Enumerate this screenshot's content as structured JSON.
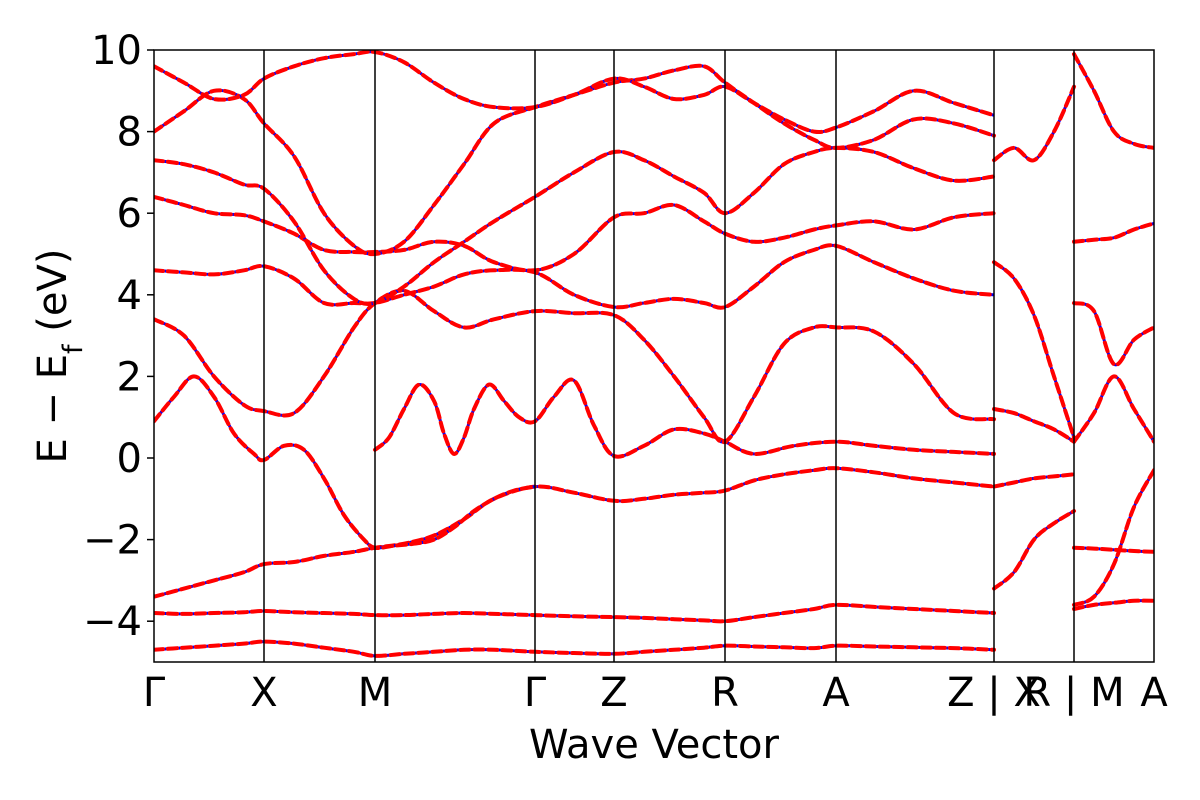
{
  "chart_data": {
    "type": "line",
    "xlabel": "Wave Vector",
    "ylabel_parts": {
      "main": "E − E",
      "sub": "f",
      "unit": " (eV)"
    },
    "ylim": [
      -5,
      10
    ],
    "xlim": [
      0,
      1
    ],
    "yticks": [
      -4,
      -2,
      0,
      2,
      4,
      6,
      8,
      10
    ],
    "ytick_labels": [
      "−4",
      "−2",
      "0",
      "2",
      "4",
      "6",
      "8",
      "10"
    ],
    "high_symmetry_points": [
      {
        "label": "Γ",
        "x": 0.0
      },
      {
        "label": "X",
        "x": 0.11
      },
      {
        "label": "M",
        "x": 0.221
      },
      {
        "label": "Γ",
        "x": 0.381
      },
      {
        "label": "Z",
        "x": 0.46
      },
      {
        "label": "R",
        "x": 0.571
      },
      {
        "label": "A",
        "x": 0.682
      },
      {
        "label": "Z | X",
        "x": 0.84
      },
      {
        "label": "R | M",
        "x": 0.92
      },
      {
        "label": "A",
        "x": 1.0
      }
    ],
    "colors": {
      "band_primary": "#ff0000",
      "band_secondary": "#0000ff",
      "axis": "#000000"
    },
    "series": [
      {
        "x": [
          0.0,
          0.03,
          0.06,
          0.09,
          0.11,
          0.14,
          0.17,
          0.2,
          0.221,
          0.25,
          0.28,
          0.31,
          0.34,
          0.381,
          0.42,
          0.46,
          0.49,
          0.52,
          0.55,
          0.571,
          0.6,
          0.63,
          0.66,
          0.682,
          0.72,
          0.76,
          0.8,
          0.84
        ],
        "y": [
          -4.7,
          -4.65,
          -4.6,
          -4.55,
          -4.5,
          -4.55,
          -4.65,
          -4.75,
          -4.85,
          -4.8,
          -4.75,
          -4.7,
          -4.7,
          -4.75,
          -4.78,
          -4.8,
          -4.75,
          -4.7,
          -4.65,
          -4.6,
          -4.62,
          -4.64,
          -4.66,
          -4.6,
          -4.62,
          -4.64,
          -4.66,
          -4.7
        ]
      },
      {
        "x": [
          0.0,
          0.03,
          0.06,
          0.09,
          0.11,
          0.14,
          0.17,
          0.2,
          0.221,
          0.25,
          0.28,
          0.31,
          0.34,
          0.381,
          0.42,
          0.46,
          0.49,
          0.52,
          0.55,
          0.571,
          0.6,
          0.63,
          0.66,
          0.682,
          0.72,
          0.76,
          0.8,
          0.84
        ],
        "y": [
          -3.8,
          -3.82,
          -3.8,
          -3.78,
          -3.75,
          -3.78,
          -3.8,
          -3.82,
          -3.85,
          -3.85,
          -3.82,
          -3.8,
          -3.82,
          -3.85,
          -3.88,
          -3.9,
          -3.92,
          -3.95,
          -3.98,
          -4.0,
          -3.9,
          -3.8,
          -3.7,
          -3.6,
          -3.65,
          -3.7,
          -3.75,
          -3.8
        ]
      },
      {
        "x": [
          0.0,
          0.03,
          0.06,
          0.09,
          0.11,
          0.14,
          0.17,
          0.2,
          0.221,
          0.25,
          0.28,
          0.31,
          0.34,
          0.381,
          0.42,
          0.46,
          0.49,
          0.52,
          0.55,
          0.571,
          0.6,
          0.63,
          0.66,
          0.682,
          0.72,
          0.76,
          0.8,
          0.84
        ],
        "y": [
          -3.4,
          -3.2,
          -3.0,
          -2.8,
          -2.6,
          -2.55,
          -2.4,
          -2.3,
          -2.2,
          -2.1,
          -1.9,
          -1.5,
          -1.0,
          -0.7,
          -0.85,
          -1.05,
          -1.0,
          -0.9,
          -0.85,
          -0.8,
          -0.55,
          -0.4,
          -0.3,
          -0.25,
          -0.35,
          -0.5,
          -0.6,
          -0.7
        ]
      },
      {
        "x": [
          0.0,
          0.02,
          0.04,
          0.06,
          0.08,
          0.1,
          0.11,
          0.13,
          0.15,
          0.17,
          0.19,
          0.21,
          0.221,
          0.24,
          0.26,
          0.28,
          0.3,
          0.32,
          0.34,
          0.36,
          0.381
        ],
        "y": [
          0.9,
          1.5,
          2.0,
          1.5,
          0.6,
          0.1,
          -0.05,
          0.3,
          0.2,
          -0.5,
          -1.4,
          -2.0,
          -2.2,
          -2.15,
          -2.1,
          -2.0,
          -1.7,
          -1.3,
          -1.0,
          -0.8,
          -0.7
        ]
      },
      {
        "x": [
          0.221,
          0.235,
          0.25,
          0.265,
          0.28,
          0.29,
          0.3,
          0.31,
          0.32,
          0.335,
          0.35,
          0.365,
          0.381,
          0.4,
          0.42,
          0.44,
          0.46,
          0.49,
          0.52,
          0.55,
          0.571,
          0.6,
          0.64,
          0.682,
          0.72,
          0.76,
          0.8,
          0.84
        ],
        "y": [
          0.2,
          0.5,
          1.2,
          1.8,
          1.4,
          0.6,
          0.1,
          0.5,
          1.2,
          1.8,
          1.4,
          1.0,
          0.9,
          1.5,
          1.9,
          0.8,
          0.05,
          0.3,
          0.7,
          0.6,
          0.4,
          0.1,
          0.3,
          0.4,
          0.3,
          0.2,
          0.15,
          0.1
        ]
      },
      {
        "x": [
          0.0,
          0.03,
          0.06,
          0.09,
          0.11,
          0.14,
          0.17,
          0.2,
          0.221,
          0.25,
          0.28,
          0.31,
          0.34,
          0.381,
          0.42,
          0.46,
          0.49,
          0.52,
          0.55,
          0.571,
          0.6,
          0.63,
          0.66,
          0.682,
          0.72,
          0.76,
          0.8,
          0.84
        ],
        "y": [
          3.4,
          3.0,
          2.0,
          1.3,
          1.15,
          1.1,
          2.0,
          3.2,
          3.8,
          4.1,
          3.6,
          3.2,
          3.4,
          3.6,
          3.55,
          3.5,
          2.9,
          2.0,
          1.0,
          0.4,
          1.5,
          2.8,
          3.2,
          3.2,
          3.1,
          2.3,
          1.1,
          0.95
        ]
      },
      {
        "x": [
          0.0,
          0.03,
          0.06,
          0.09,
          0.11,
          0.14,
          0.17,
          0.2,
          0.221,
          0.25,
          0.28,
          0.31,
          0.34,
          0.381,
          0.42,
          0.46,
          0.49,
          0.52,
          0.55,
          0.571,
          0.6,
          0.63,
          0.66,
          0.682,
          0.72,
          0.76,
          0.8,
          0.84
        ],
        "y": [
          4.6,
          4.55,
          4.5,
          4.6,
          4.7,
          4.4,
          3.8,
          3.8,
          3.8,
          4.0,
          4.2,
          4.5,
          4.6,
          4.55,
          4.0,
          3.7,
          3.8,
          3.9,
          3.8,
          3.7,
          4.2,
          4.8,
          5.1,
          5.2,
          4.8,
          4.4,
          4.1,
          4.0
        ]
      },
      {
        "x": [
          0.0,
          0.03,
          0.06,
          0.09,
          0.11,
          0.14,
          0.17,
          0.2,
          0.221,
          0.25,
          0.28,
          0.31,
          0.34,
          0.381,
          0.42,
          0.46,
          0.49,
          0.52,
          0.55,
          0.571,
          0.6,
          0.63,
          0.66,
          0.682,
          0.72,
          0.76,
          0.8,
          0.84
        ],
        "y": [
          6.4,
          6.2,
          6.0,
          5.95,
          5.8,
          5.5,
          5.1,
          5.05,
          5.05,
          5.1,
          5.3,
          5.2,
          4.8,
          4.6,
          5.0,
          5.9,
          6.0,
          6.2,
          5.8,
          5.5,
          5.3,
          5.4,
          5.6,
          5.7,
          5.8,
          5.6,
          5.9,
          6.0
        ]
      },
      {
        "x": [
          0.0,
          0.03,
          0.06,
          0.09,
          0.11,
          0.14,
          0.17,
          0.2,
          0.221,
          0.25,
          0.28,
          0.31,
          0.34,
          0.381,
          0.42,
          0.46,
          0.49,
          0.52,
          0.55,
          0.571,
          0.6,
          0.63,
          0.66,
          0.682,
          0.72,
          0.76,
          0.8,
          0.84
        ],
        "y": [
          7.3,
          7.2,
          7.0,
          6.7,
          6.6,
          5.8,
          4.6,
          3.9,
          3.8,
          4.2,
          4.8,
          5.3,
          5.8,
          6.4,
          7.0,
          7.5,
          7.3,
          6.9,
          6.5,
          6.0,
          6.5,
          7.2,
          7.5,
          7.6,
          7.5,
          7.1,
          6.8,
          6.9
        ]
      },
      {
        "x": [
          0.0,
          0.03,
          0.06,
          0.09,
          0.11,
          0.14,
          0.17,
          0.2,
          0.221,
          0.25,
          0.28,
          0.31,
          0.34,
          0.381,
          0.42,
          0.46,
          0.49,
          0.52,
          0.55,
          0.571,
          0.6,
          0.63,
          0.66,
          0.682,
          0.72,
          0.76,
          0.8,
          0.84
        ],
        "y": [
          8.0,
          8.5,
          9.0,
          8.8,
          8.2,
          7.4,
          6.0,
          5.2,
          5.0,
          5.3,
          6.2,
          7.2,
          8.2,
          8.6,
          8.9,
          9.2,
          9.3,
          9.5,
          9.6,
          9.2,
          8.7,
          8.2,
          7.8,
          7.6,
          7.8,
          8.3,
          8.2,
          7.9
        ]
      },
      {
        "x": [
          0.0,
          0.03,
          0.06,
          0.09,
          0.11,
          0.14,
          0.17,
          0.2,
          0.221,
          0.25,
          0.28,
          0.31,
          0.34,
          0.381,
          0.42,
          0.46,
          0.49,
          0.52,
          0.55,
          0.571,
          0.6,
          0.63,
          0.66,
          0.682,
          0.72,
          0.76,
          0.8,
          0.84
        ],
        "y": [
          9.6,
          9.2,
          8.8,
          8.9,
          9.3,
          9.6,
          9.8,
          9.9,
          9.95,
          9.7,
          9.2,
          8.8,
          8.6,
          8.6,
          8.9,
          9.3,
          9.1,
          8.8,
          8.9,
          9.1,
          8.7,
          8.3,
          8.0,
          8.1,
          8.5,
          9.0,
          8.7,
          8.4
        ]
      },
      {
        "x": [
          0.84,
          0.86,
          0.88,
          0.9,
          0.92
        ],
        "y": [
          1.2,
          1.1,
          0.9,
          0.7,
          0.4
        ]
      },
      {
        "x": [
          0.84,
          0.86,
          0.88,
          0.9,
          0.92
        ],
        "y": [
          -0.7,
          -0.6,
          -0.5,
          -0.45,
          -0.4
        ]
      },
      {
        "x": [
          0.84,
          0.86,
          0.88,
          0.9,
          0.92
        ],
        "y": [
          -3.2,
          -2.8,
          -2.0,
          -1.6,
          -1.3
        ]
      },
      {
        "x": [
          0.84,
          0.86,
          0.88,
          0.9,
          0.92
        ],
        "y": [
          4.8,
          4.4,
          3.5,
          2.0,
          0.5
        ]
      },
      {
        "x": [
          0.84,
          0.86,
          0.88,
          0.9,
          0.92
        ],
        "y": [
          7.3,
          7.6,
          7.3,
          8.0,
          9.1
        ]
      },
      {
        "x": [
          0.92,
          0.94,
          0.96,
          0.98,
          1.0
        ],
        "y": [
          5.3,
          5.35,
          5.4,
          5.6,
          5.75
        ]
      },
      {
        "x": [
          0.92,
          0.94,
          0.96,
          0.98,
          1.0
        ],
        "y": [
          3.8,
          3.6,
          2.3,
          2.9,
          3.2
        ]
      },
      {
        "x": [
          0.92,
          0.94,
          0.96,
          0.98,
          1.0
        ],
        "y": [
          0.4,
          1.1,
          2.0,
          1.2,
          0.4
        ]
      },
      {
        "x": [
          0.92,
          0.94,
          0.96,
          0.98,
          1.0
        ],
        "y": [
          -2.2,
          -2.22,
          -2.25,
          -2.28,
          -2.3
        ]
      },
      {
        "x": [
          0.92,
          0.94,
          0.96,
          0.98,
          1.0
        ],
        "y": [
          -3.6,
          -3.4,
          -2.6,
          -1.2,
          -0.3
        ]
      },
      {
        "x": [
          0.92,
          0.94,
          0.96,
          0.98,
          1.0
        ],
        "y": [
          -3.7,
          -3.6,
          -3.55,
          -3.5,
          -3.5
        ]
      },
      {
        "x": [
          0.92,
          0.94,
          0.96,
          0.98,
          1.0
        ],
        "y": [
          9.9,
          9.0,
          8.0,
          7.7,
          7.6
        ]
      }
    ]
  }
}
